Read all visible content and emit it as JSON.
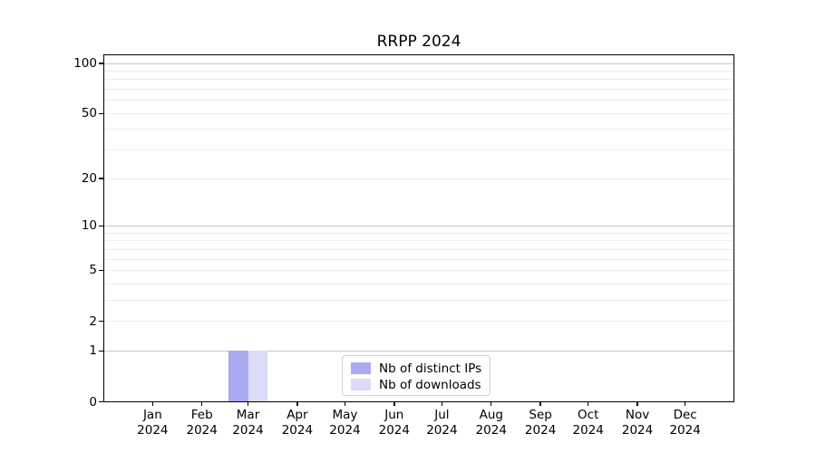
{
  "chart_data": {
    "type": "bar",
    "title": "RRPP 2024",
    "x_ticks": [
      {
        "month": "Jan",
        "year": "2024"
      },
      {
        "month": "Feb",
        "year": "2024"
      },
      {
        "month": "Mar",
        "year": "2024"
      },
      {
        "month": "Apr",
        "year": "2024"
      },
      {
        "month": "May",
        "year": "2024"
      },
      {
        "month": "Jun",
        "year": "2024"
      },
      {
        "month": "Jul",
        "year": "2024"
      },
      {
        "month": "Aug",
        "year": "2024"
      },
      {
        "month": "Sep",
        "year": "2024"
      },
      {
        "month": "Oct",
        "year": "2024"
      },
      {
        "month": "Nov",
        "year": "2024"
      },
      {
        "month": "Dec",
        "year": "2024"
      }
    ],
    "series": [
      {
        "name": "Nb of distinct IPs",
        "color": "#aaaaf2",
        "values": [
          0,
          0,
          1,
          0,
          0,
          0,
          0,
          0,
          0,
          0,
          0,
          0
        ]
      },
      {
        "name": "Nb of downloads",
        "color": "#dcdcf7",
        "values": [
          0,
          0,
          1,
          0,
          0,
          0,
          0,
          0,
          0,
          0,
          0,
          0
        ]
      }
    ],
    "y_axis": {
      "scale": "log1p",
      "tick_values": [
        0,
        1,
        2,
        5,
        10,
        20,
        50,
        100
      ],
      "max": 113
    },
    "grid": {
      "major_values": [
        1,
        10,
        100
      ],
      "minor_values": [
        2,
        3,
        4,
        5,
        6,
        7,
        8,
        9,
        20,
        30,
        40,
        50,
        60,
        70,
        80,
        90
      ],
      "major_color": "#c6c6c6",
      "minor_color": "#ededed"
    },
    "legend": {
      "position": "lower center",
      "entries": [
        "Nb of distinct IPs",
        "Nb of downloads"
      ]
    },
    "x_axis": {
      "total_days": 397,
      "month_start_day_offsets": [
        31,
        62,
        91,
        122,
        152,
        183,
        213,
        244,
        275,
        305,
        336,
        366
      ],
      "bar_width_days": 12
    }
  }
}
